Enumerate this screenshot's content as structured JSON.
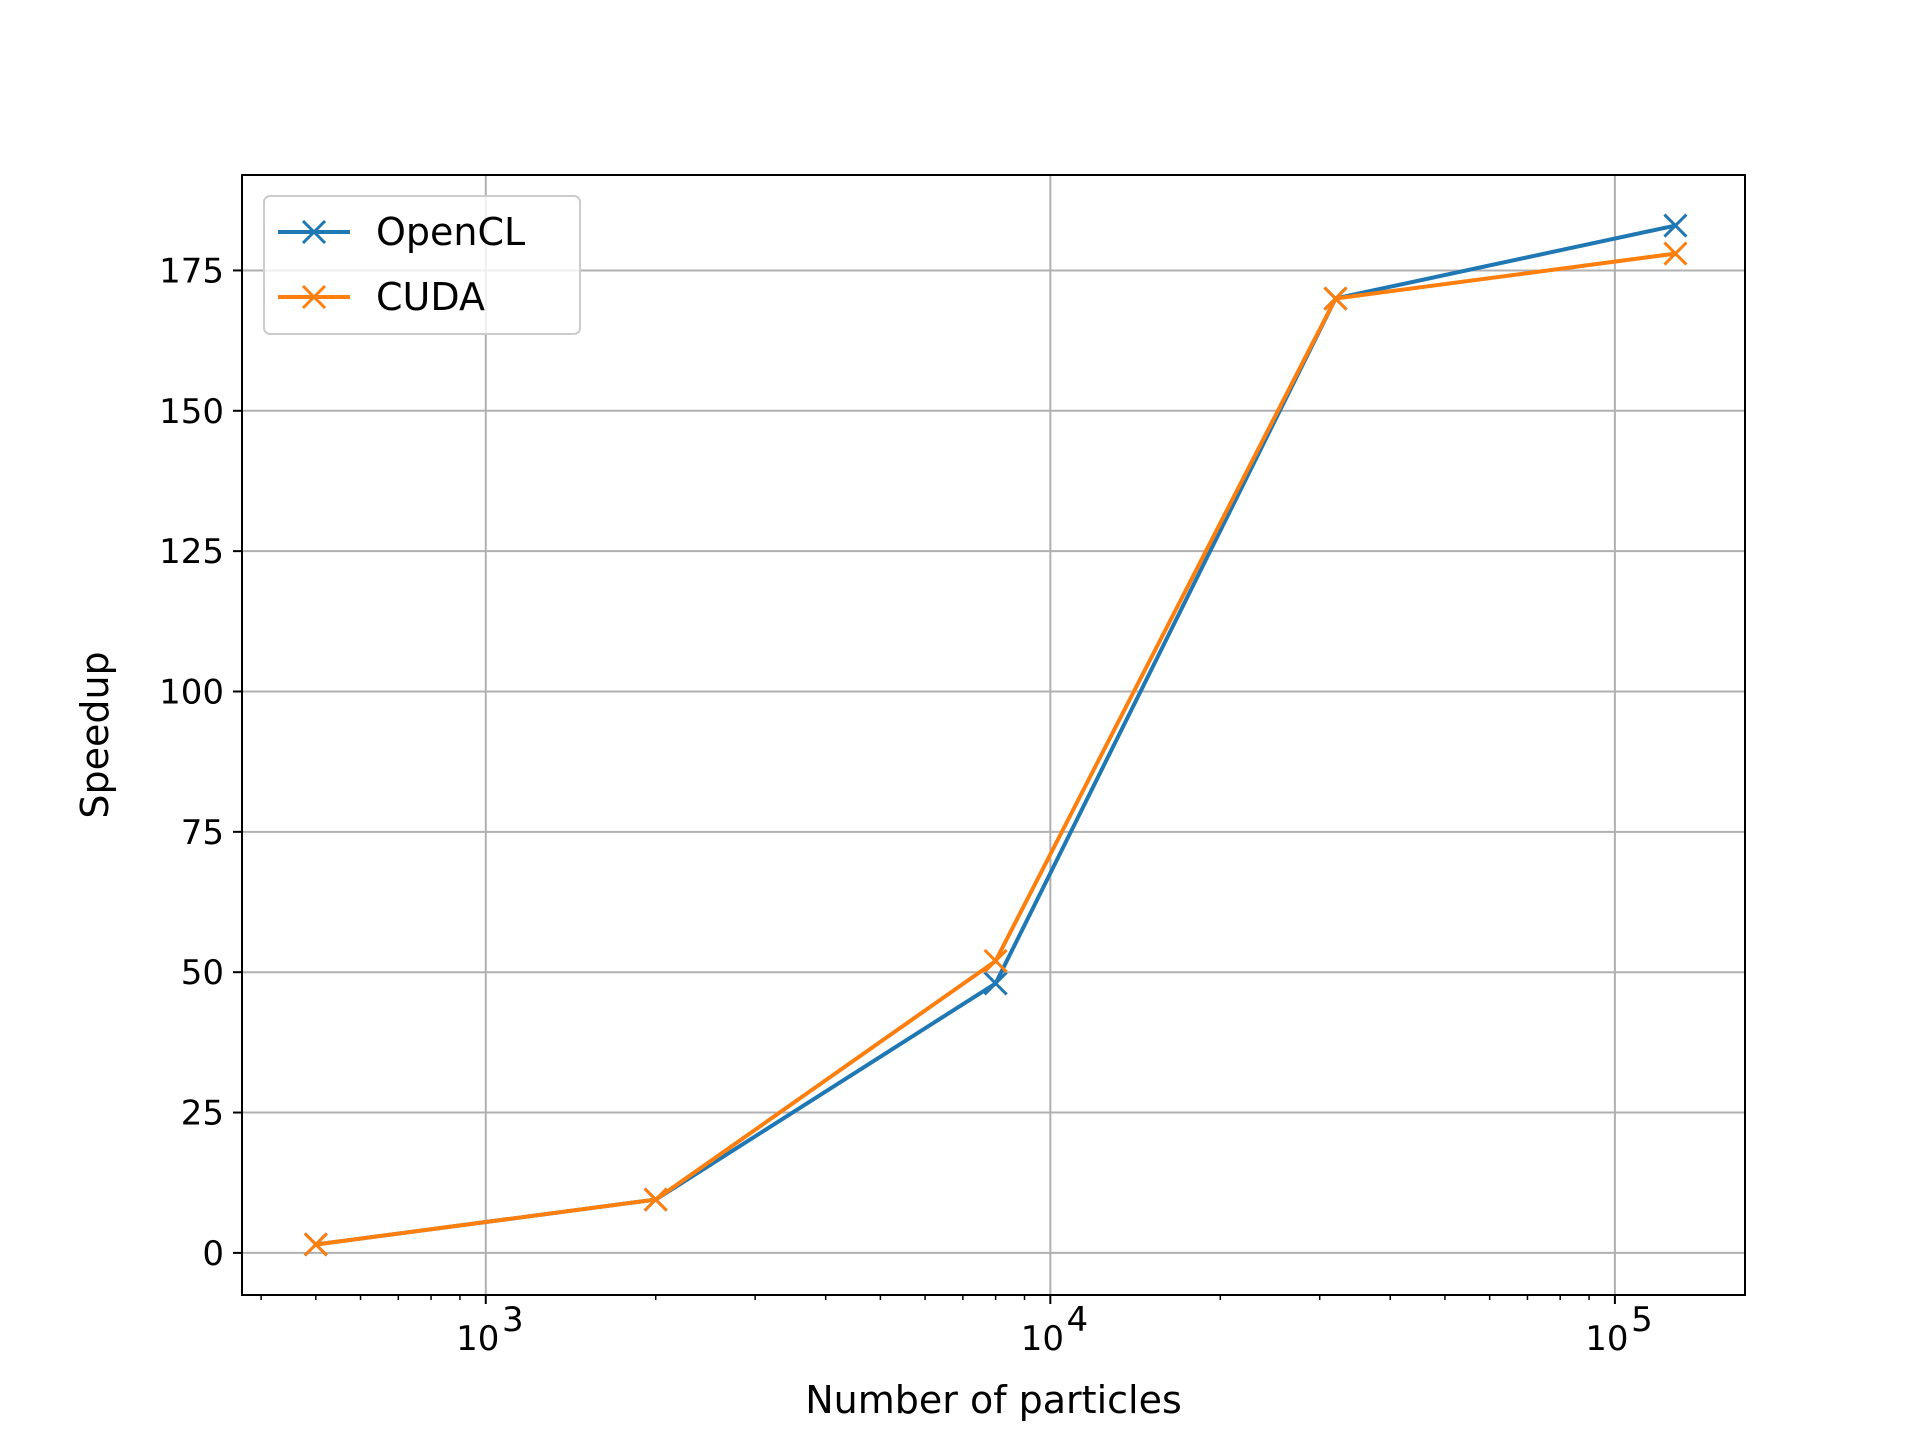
{
  "chart_data": {
    "type": "line",
    "xlabel": "Number of particles",
    "ylabel": "Speedup",
    "x_scale": "log",
    "xlim": [
      370,
      170000
    ],
    "ylim": [
      -7.5,
      192
    ],
    "x_ticks": [
      {
        "value": 1000,
        "label": "10",
        "exp": "3"
      },
      {
        "value": 10000,
        "label": "10",
        "exp": "4"
      },
      {
        "value": 100000,
        "label": "10",
        "exp": "5"
      }
    ],
    "y_ticks": [
      0,
      25,
      50,
      75,
      100,
      125,
      150,
      175
    ],
    "grid": true,
    "legend_position": "upper-left",
    "x": [
      500,
      2000,
      8000,
      32000,
      128000
    ],
    "series": [
      {
        "name": "OpenCL",
        "color": "#1f77b4",
        "marker": "x",
        "values": [
          1.5,
          9.5,
          48,
          170,
          183
        ]
      },
      {
        "name": "CUDA",
        "color": "#ff7f0e",
        "marker": "x",
        "values": [
          1.5,
          9.5,
          52,
          170,
          178
        ]
      }
    ]
  }
}
